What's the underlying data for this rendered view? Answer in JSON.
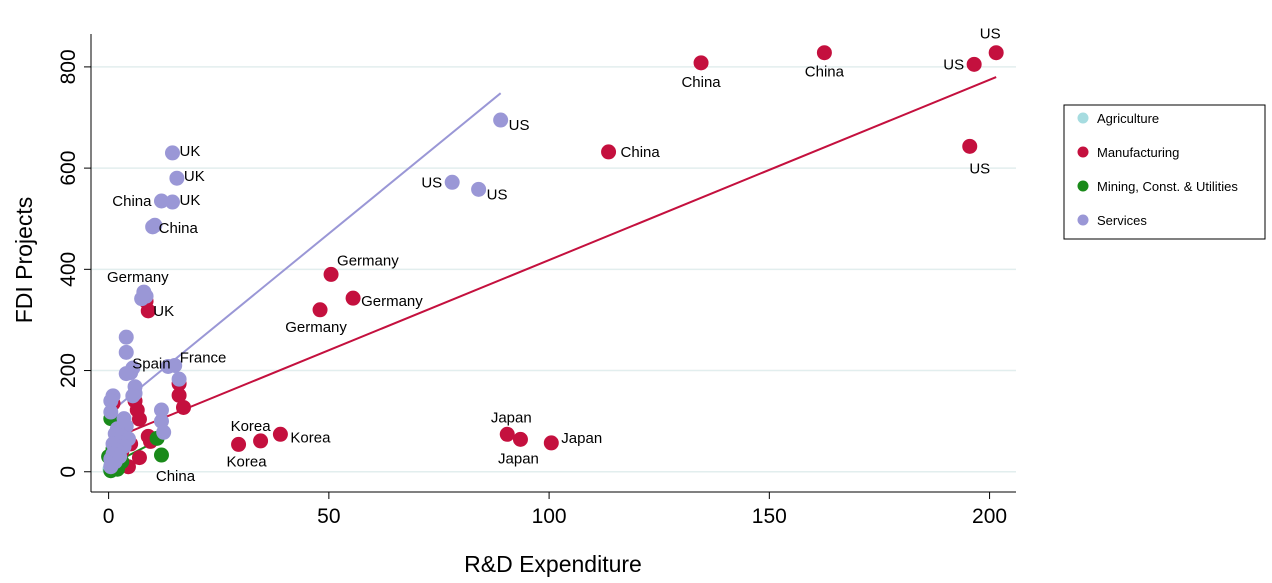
{
  "chart_data": {
    "type": "scatter",
    "xlabel": "R&D Expenditure",
    "ylabel": "FDI Projects",
    "xlim": [
      -4,
      206
    ],
    "ylim": [
      -40,
      865
    ],
    "xticks": [
      0,
      50,
      100,
      150,
      200
    ],
    "yticks": [
      0,
      200,
      400,
      600,
      800
    ],
    "grid": "horizontal",
    "legend_position": "right",
    "series": [
      {
        "name": "Agriculture",
        "color": "#a6dce0",
        "points": [
          {
            "x": 0.3,
            "y": 5,
            "label": ""
          },
          {
            "x": 0.5,
            "y": 12,
            "label": ""
          }
        ]
      },
      {
        "name": "Manufacturing",
        "color": "#c4103e",
        "points": [
          {
            "x": 134.5,
            "y": 808,
            "label": "China"
          },
          {
            "x": 162.5,
            "y": 828,
            "label": "China"
          },
          {
            "x": 196.5,
            "y": 805,
            "label": "US"
          },
          {
            "x": 201.5,
            "y": 828,
            "label": "US"
          },
          {
            "x": 195.5,
            "y": 643,
            "label": "US"
          },
          {
            "x": 113.5,
            "y": 632,
            "label": "China"
          },
          {
            "x": 50.5,
            "y": 390,
            "label": "Germany"
          },
          {
            "x": 55.5,
            "y": 343,
            "label": "Germany"
          },
          {
            "x": 48,
            "y": 320,
            "label": "Germany"
          },
          {
            "x": 9,
            "y": 318,
            "label": "UK"
          },
          {
            "x": 29.5,
            "y": 54,
            "label": "Korea"
          },
          {
            "x": 34.5,
            "y": 61,
            "label": "Korea"
          },
          {
            "x": 39,
            "y": 74,
            "label": "Korea"
          },
          {
            "x": 90.5,
            "y": 74,
            "label": "Japan"
          },
          {
            "x": 93.5,
            "y": 64,
            "label": "Japan"
          },
          {
            "x": 100.5,
            "y": 57,
            "label": "Japan"
          },
          {
            "x": 8.5,
            "y": 337,
            "label": ""
          },
          {
            "x": 16,
            "y": 174,
            "label": ""
          },
          {
            "x": 16,
            "y": 151,
            "label": ""
          },
          {
            "x": 17,
            "y": 127,
            "label": ""
          },
          {
            "x": 6,
            "y": 140,
            "label": ""
          },
          {
            "x": 6.5,
            "y": 122,
            "label": ""
          },
          {
            "x": 7,
            "y": 104,
            "label": ""
          },
          {
            "x": 9,
            "y": 70,
            "label": ""
          },
          {
            "x": 9.5,
            "y": 60,
            "label": ""
          },
          {
            "x": 7,
            "y": 28,
            "label": ""
          },
          {
            "x": 4.5,
            "y": 10,
            "label": ""
          },
          {
            "x": 3,
            "y": 40,
            "label": ""
          },
          {
            "x": 1,
            "y": 135,
            "label": ""
          },
          {
            "x": 2,
            "y": 60,
            "label": ""
          },
          {
            "x": 5,
            "y": 55,
            "label": ""
          },
          {
            "x": 3.5,
            "y": 85,
            "label": ""
          }
        ]
      },
      {
        "name": "Mining, Const. & Utilities",
        "color": "#1a8a1a",
        "points": [
          {
            "x": 12,
            "y": 33,
            "label": "China"
          },
          {
            "x": 11,
            "y": 66,
            "label": ""
          },
          {
            "x": 0.5,
            "y": 105,
            "label": ""
          },
          {
            "x": 1,
            "y": 45,
            "label": ""
          },
          {
            "x": 0.5,
            "y": 2,
            "label": ""
          },
          {
            "x": 2,
            "y": 5,
            "label": ""
          },
          {
            "x": 0,
            "y": 30,
            "label": ""
          },
          {
            "x": 1.5,
            "y": 15,
            "label": ""
          },
          {
            "x": 3,
            "y": 20,
            "label": ""
          },
          {
            "x": 2.5,
            "y": 40,
            "label": ""
          }
        ]
      },
      {
        "name": "Services",
        "color": "#9a97d6",
        "points": [
          {
            "x": 89,
            "y": 695,
            "label": "US"
          },
          {
            "x": 78,
            "y": 572,
            "label": "US"
          },
          {
            "x": 84,
            "y": 558,
            "label": "US"
          },
          {
            "x": 14.5,
            "y": 630,
            "label": "UK"
          },
          {
            "x": 15.5,
            "y": 580,
            "label": "UK"
          },
          {
            "x": 14.5,
            "y": 533,
            "label": "UK"
          },
          {
            "x": 12,
            "y": 535,
            "label": "China"
          },
          {
            "x": 10.5,
            "y": 487,
            "label": ""
          },
          {
            "x": 10,
            "y": 484,
            "label": "China"
          },
          {
            "x": 8,
            "y": 355,
            "label": "Germany"
          },
          {
            "x": 8.5,
            "y": 347,
            "label": ""
          },
          {
            "x": 7.5,
            "y": 342,
            "label": ""
          },
          {
            "x": 4,
            "y": 266,
            "label": ""
          },
          {
            "x": 4,
            "y": 236,
            "label": "Spain"
          },
          {
            "x": 15,
            "y": 210,
            "label": "France"
          },
          {
            "x": 13.5,
            "y": 208,
            "label": ""
          },
          {
            "x": 16,
            "y": 183,
            "label": ""
          },
          {
            "x": 5.5,
            "y": 205,
            "label": ""
          },
          {
            "x": 5,
            "y": 196,
            "label": ""
          },
          {
            "x": 4,
            "y": 194,
            "label": ""
          },
          {
            "x": 6,
            "y": 168,
            "label": ""
          },
          {
            "x": 6,
            "y": 155,
            "label": ""
          },
          {
            "x": 5.5,
            "y": 150,
            "label": ""
          },
          {
            "x": 1,
            "y": 150,
            "label": ""
          },
          {
            "x": 0.5,
            "y": 140,
            "label": ""
          },
          {
            "x": 0.5,
            "y": 118,
            "label": ""
          },
          {
            "x": 12,
            "y": 122,
            "label": ""
          },
          {
            "x": 12,
            "y": 100,
            "label": ""
          },
          {
            "x": 12.5,
            "y": 78,
            "label": ""
          },
          {
            "x": 3.5,
            "y": 105,
            "label": ""
          },
          {
            "x": 4,
            "y": 90,
            "label": ""
          },
          {
            "x": 2,
            "y": 85,
            "label": ""
          },
          {
            "x": 1.5,
            "y": 75,
            "label": ""
          },
          {
            "x": 3,
            "y": 70,
            "label": ""
          },
          {
            "x": 4.5,
            "y": 65,
            "label": ""
          },
          {
            "x": 2.5,
            "y": 58,
            "label": ""
          },
          {
            "x": 1,
            "y": 55,
            "label": ""
          },
          {
            "x": 3.5,
            "y": 50,
            "label": ""
          },
          {
            "x": 2,
            "y": 42,
            "label": ""
          },
          {
            "x": 1,
            "y": 35,
            "label": ""
          },
          {
            "x": 0.5,
            "y": 25,
            "label": ""
          },
          {
            "x": 1.5,
            "y": 20,
            "label": ""
          },
          {
            "x": 0.5,
            "y": 10,
            "label": ""
          },
          {
            "x": 2.5,
            "y": 30,
            "label": ""
          }
        ]
      }
    ],
    "fit_lines": [
      {
        "series": "Manufacturing",
        "x": [
          0,
          201.5
        ],
        "y": [
          62,
          780
        ]
      },
      {
        "series": "Services",
        "x": [
          0,
          89
        ],
        "y": [
          115,
          748
        ]
      },
      {
        "series": "Mining, Const. & Utilities",
        "x": [
          0,
          12.5
        ],
        "y": [
          12,
          68
        ]
      }
    ]
  }
}
